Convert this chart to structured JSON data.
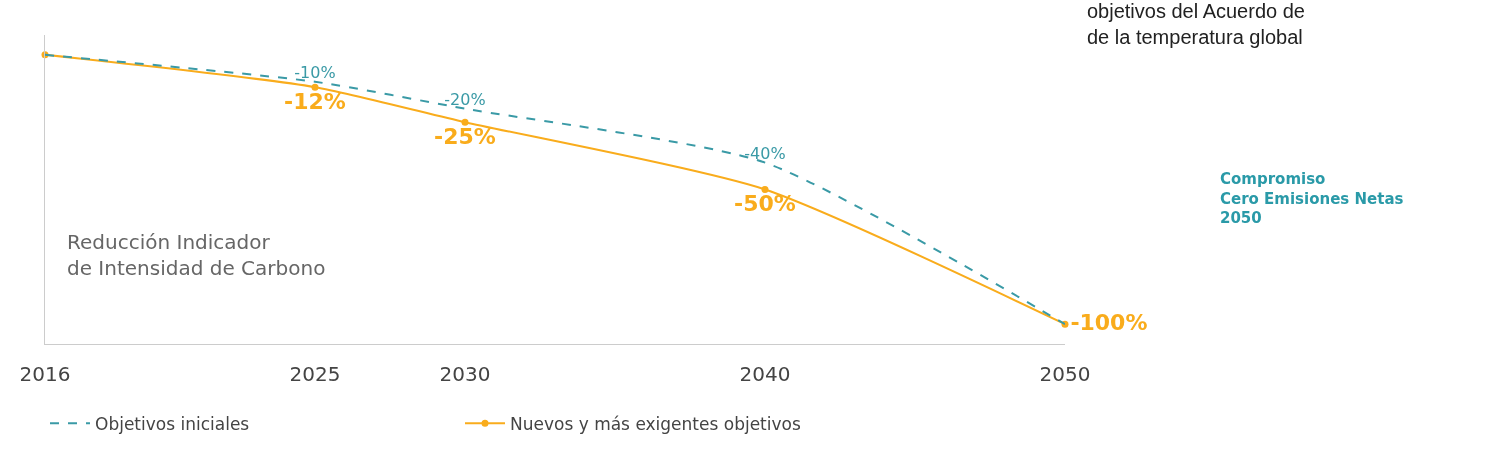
{
  "chart_data": {
    "type": "line",
    "x": [
      2016,
      2025,
      2030,
      2040,
      2050
    ],
    "xlim": [
      2016,
      2050
    ],
    "xticks": [
      2016,
      2025,
      2030,
      2040,
      2050
    ],
    "tick_labels": "x",
    "grid": false,
    "legend": "bottom left",
    "series": [
      {
        "name": "Objetivos iniciales",
        "color": "#3a9aa6",
        "values": [
          0,
          -10,
          -20,
          -40,
          -100
        ],
        "value_labels": [
          null,
          "-10%",
          "-20%",
          "-40%",
          null
        ],
        "line_style": "dashed",
        "marker": "none"
      },
      {
        "name": "Nuevos y más exigentes objetivos",
        "color": "#f9ac1c",
        "values": [
          0,
          -12,
          -25,
          -50,
          -100
        ],
        "value_labels": [
          null,
          "-12%",
          "-25%",
          "-50%",
          "-100%"
        ],
        "line_style": "solid",
        "marker": "circle"
      }
    ],
    "annotations": [
      "Reducción Indicador\nde Intensidad de Carbono",
      "objetivos del Acuerdo de\nde la temperatura global",
      "Compromiso\nCero Emisiones Netas\n2050"
    ]
  }
}
